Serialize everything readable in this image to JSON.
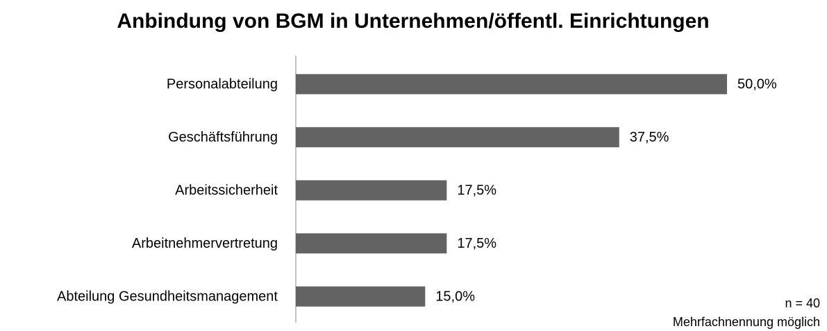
{
  "chart_data": {
    "type": "bar",
    "orientation": "horizontal",
    "title": "Anbindung von BGM in Unternehmen/öffentl. Einrichtungen",
    "categories": [
      "Personalabteilung",
      "Geschäftsführung",
      "Arbeitssicherheit",
      "Arbeitnehmervertretung",
      "Abteilung Gesundheitsmanagement"
    ],
    "values": [
      50,
      37.5,
      17.5,
      17.5,
      15
    ],
    "value_labels": [
      "50,0%",
      "37,5%",
      "17,5%",
      "17,5%",
      "15,0%"
    ],
    "color": "#636363",
    "annotations": [
      "n = 40",
      "Mehrfachnennung möglich"
    ]
  }
}
